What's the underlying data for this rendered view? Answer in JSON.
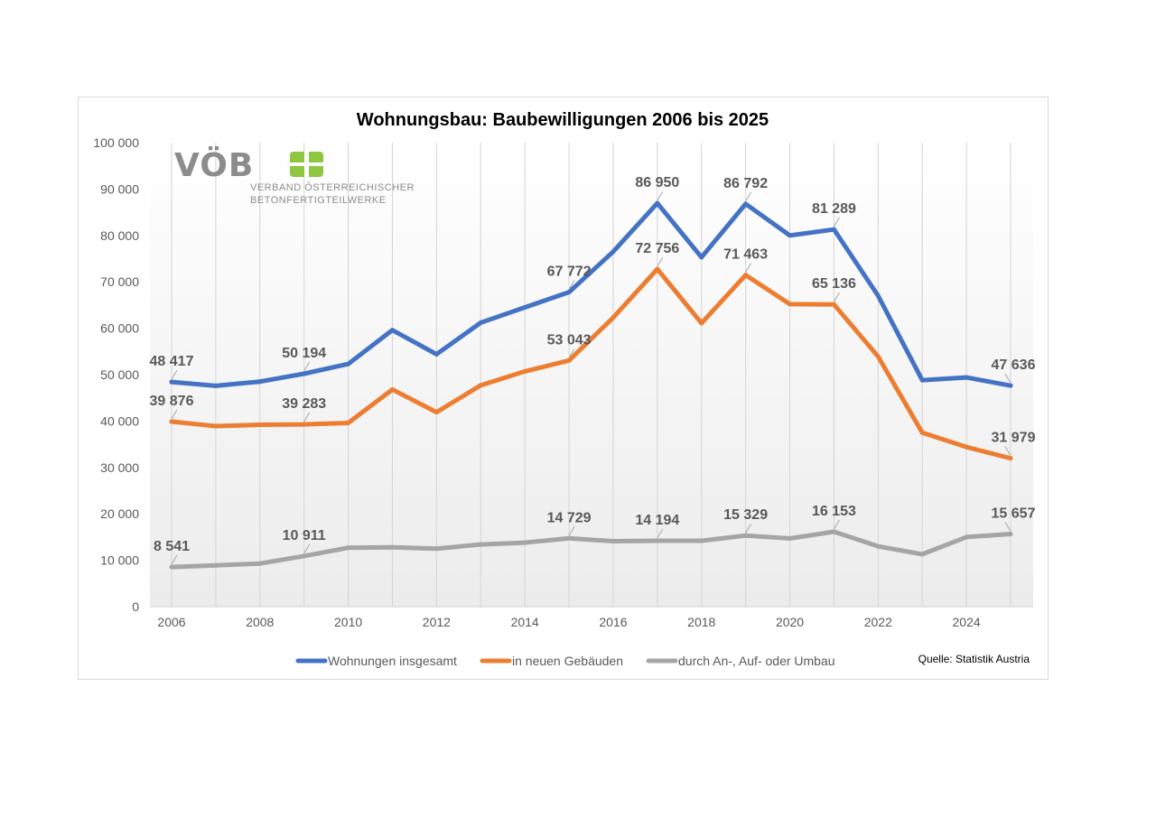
{
  "chart_data": {
    "type": "line",
    "title": "Wohnungsbau: Baubewilligungen 2006 bis 2025",
    "x": [
      2006,
      2007,
      2008,
      2009,
      2010,
      2011,
      2012,
      2013,
      2014,
      2015,
      2016,
      2017,
      2018,
      2019,
      2020,
      2021,
      2022,
      2023,
      2024,
      2025
    ],
    "x_tick_labels": [
      "2006",
      "2008",
      "2010",
      "2012",
      "2014",
      "2016",
      "2018",
      "2020",
      "2022",
      "2024"
    ],
    "y_tick_labels": [
      "0",
      "10 000",
      "20 000",
      "30 000",
      "40 000",
      "50 000",
      "60 000",
      "70 000",
      "80 000",
      "90 000",
      "100 000"
    ],
    "ylim": [
      0,
      100000
    ],
    "grid": "vertical",
    "legend_position": "bottom",
    "series": [
      {
        "name": "Wohnungen insgesamt",
        "color": "#4472c4",
        "values": [
          48417,
          47600,
          48500,
          50194,
          52300,
          59600,
          54400,
          61200,
          64500,
          67772,
          76500,
          86950,
          75300,
          86792,
          80000,
          81289,
          67000,
          48800,
          49400,
          47636
        ],
        "data_labels": [
          {
            "x": 2006,
            "text": "48 417"
          },
          {
            "x": 2009,
            "text": "50 194"
          },
          {
            "x": 2015,
            "text": "67 772"
          },
          {
            "x": 2017,
            "text": "86 950"
          },
          {
            "x": 2019,
            "text": "86 792"
          },
          {
            "x": 2021,
            "text": "81 289"
          },
          {
            "x": 2025,
            "text": "47 636"
          }
        ]
      },
      {
        "name": "in neuen Gebäuden",
        "color": "#ed7d31",
        "values": [
          39876,
          38900,
          39200,
          39283,
          39600,
          46800,
          41900,
          47700,
          50700,
          53043,
          62300,
          72756,
          61100,
          71463,
          65200,
          65136,
          53900,
          37500,
          34400,
          31979
        ],
        "data_labels": [
          {
            "x": 2006,
            "text": "39 876"
          },
          {
            "x": 2009,
            "text": "39 283"
          },
          {
            "x": 2015,
            "text": "53 043"
          },
          {
            "x": 2017,
            "text": "72 756"
          },
          {
            "x": 2019,
            "text": "71 463"
          },
          {
            "x": 2021,
            "text": "65 136"
          },
          {
            "x": 2025,
            "text": "31 979"
          }
        ]
      },
      {
        "name": "durch An-, Auf- oder Umbau",
        "color": "#a5a5a5",
        "values": [
          8541,
          8900,
          9300,
          10911,
          12700,
          12800,
          12500,
          13400,
          13800,
          14729,
          14100,
          14194,
          14200,
          15329,
          14700,
          16153,
          13000,
          11300,
          15000,
          15657
        ],
        "data_labels": [
          {
            "x": 2006,
            "text": "8 541"
          },
          {
            "x": 2009,
            "text": "10 911"
          },
          {
            "x": 2015,
            "text": "14 729"
          },
          {
            "x": 2017,
            "text": "14 194"
          },
          {
            "x": 2019,
            "text": "15 329"
          },
          {
            "x": 2021,
            "text": "16 153"
          },
          {
            "x": 2025,
            "text": "15 657"
          }
        ]
      }
    ]
  },
  "logo": {
    "text": "VÖB",
    "subtitle_line1": "VERBAND ÖSTERREICHISCHER",
    "subtitle_line2": "BETONFERTIGTEILWERKE",
    "text_color": "#8c8c8c",
    "mark_color": "#8dc63f"
  },
  "source_note": "Quelle: Statistik Austria"
}
